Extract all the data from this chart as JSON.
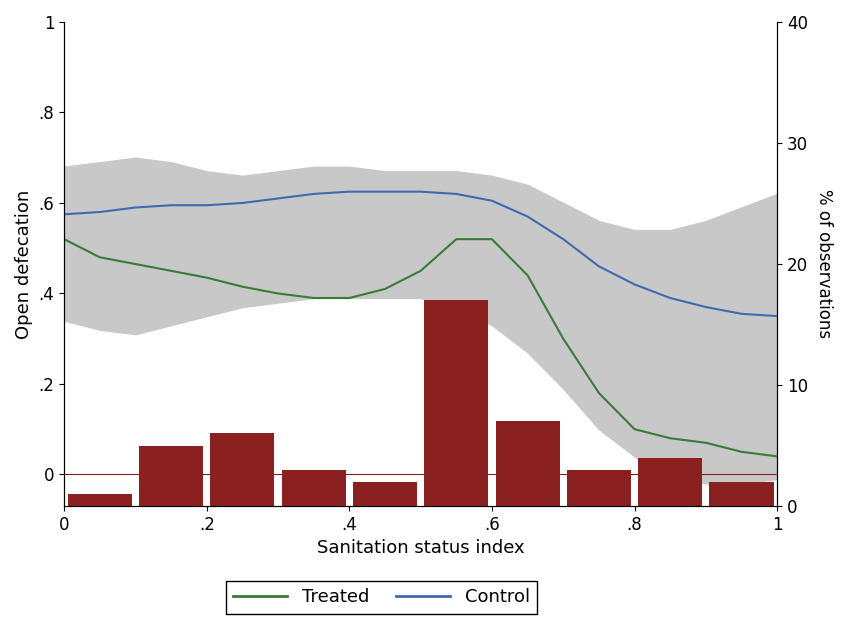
{
  "title": "",
  "xlabel": "Sanitation status index",
  "ylabel_left": "Open defecation",
  "ylabel_right": "% of observations",
  "xlim": [
    0,
    1
  ],
  "ylim_left": [
    -0.07,
    1.0
  ],
  "ylim_right": [
    0,
    40
  ],
  "xticks": [
    0,
    0.2,
    0.4,
    0.6,
    0.8,
    1.0
  ],
  "xticklabels": [
    "0",
    ".2",
    ".4",
    ".6",
    ".8",
    "1"
  ],
  "yticks_left": [
    0,
    0.2,
    0.4,
    0.6,
    0.8,
    1.0
  ],
  "yticklabels_left": [
    "0",
    ".2",
    ".4",
    ".6",
    ".8",
    "1"
  ],
  "yticks_right": [
    0,
    10,
    20,
    30,
    40
  ],
  "yticklabels_right": [
    "0",
    "10",
    "20",
    "30",
    "40"
  ],
  "ci_color": "#c8c8c8",
  "treated_color": "#3a7a3a",
  "control_color": "#4169b0",
  "bar_color": "#8b2020",
  "background_color": "#ffffff",
  "treated_x": [
    0.0,
    0.05,
    0.1,
    0.15,
    0.2,
    0.25,
    0.3,
    0.35,
    0.4,
    0.45,
    0.5,
    0.55,
    0.6,
    0.65,
    0.7,
    0.75,
    0.8,
    0.85,
    0.9,
    0.95,
    1.0
  ],
  "treated_y": [
    0.52,
    0.48,
    0.465,
    0.45,
    0.435,
    0.415,
    0.4,
    0.39,
    0.39,
    0.41,
    0.45,
    0.52,
    0.52,
    0.44,
    0.3,
    0.18,
    0.1,
    0.08,
    0.07,
    0.05,
    0.04
  ],
  "control_x": [
    0.0,
    0.05,
    0.1,
    0.15,
    0.2,
    0.25,
    0.3,
    0.35,
    0.4,
    0.45,
    0.5,
    0.55,
    0.6,
    0.65,
    0.7,
    0.75,
    0.8,
    0.85,
    0.9,
    0.95,
    1.0
  ],
  "control_y": [
    0.575,
    0.58,
    0.59,
    0.595,
    0.595,
    0.6,
    0.61,
    0.62,
    0.625,
    0.625,
    0.625,
    0.62,
    0.605,
    0.57,
    0.52,
    0.46,
    0.42,
    0.39,
    0.37,
    0.355,
    0.35
  ],
  "ci_upper_x": [
    0.0,
    0.05,
    0.1,
    0.15,
    0.2,
    0.25,
    0.3,
    0.35,
    0.4,
    0.45,
    0.5,
    0.55,
    0.6,
    0.65,
    0.7,
    0.75,
    0.8,
    0.85,
    0.9,
    0.95,
    1.0
  ],
  "ci_upper_y": [
    0.68,
    0.69,
    0.7,
    0.69,
    0.67,
    0.66,
    0.67,
    0.68,
    0.68,
    0.67,
    0.67,
    0.67,
    0.66,
    0.64,
    0.6,
    0.56,
    0.54,
    0.54,
    0.56,
    0.59,
    0.62
  ],
  "ci_lower_x": [
    0.0,
    0.05,
    0.1,
    0.15,
    0.2,
    0.25,
    0.3,
    0.35,
    0.4,
    0.45,
    0.5,
    0.55,
    0.6,
    0.65,
    0.7,
    0.75,
    0.8,
    0.85,
    0.9,
    0.95,
    1.0
  ],
  "ci_lower_y": [
    0.34,
    0.32,
    0.31,
    0.33,
    0.35,
    0.37,
    0.38,
    0.39,
    0.39,
    0.39,
    0.39,
    0.37,
    0.33,
    0.27,
    0.19,
    0.1,
    0.04,
    0.0,
    -0.02,
    -0.02,
    -0.01
  ],
  "hist_bins": [
    0.0,
    0.1,
    0.2,
    0.3,
    0.4,
    0.5,
    0.6,
    0.7,
    0.8,
    0.9,
    1.0
  ],
  "hist_heights_pct": [
    1,
    5,
    6,
    3,
    2,
    17,
    7,
    3,
    4,
    2
  ],
  "bar_width": 0.09
}
